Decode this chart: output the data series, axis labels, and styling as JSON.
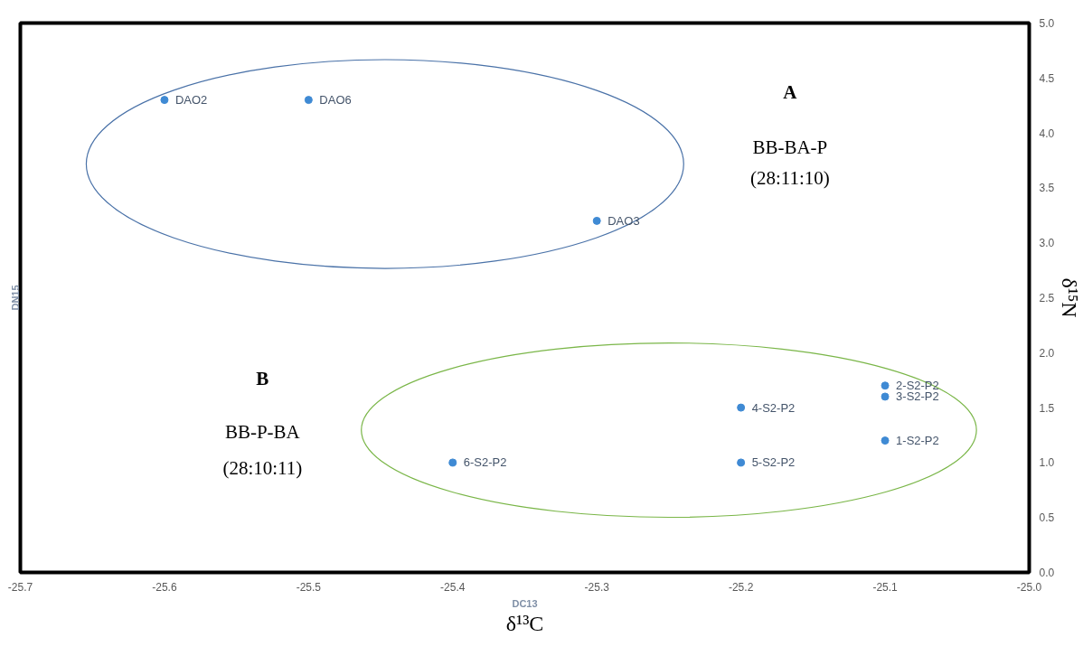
{
  "chart_data": {
    "type": "scatter",
    "xlabel": "DC13",
    "ylabel": "DN15",
    "x": [
      -25.6,
      -25.5,
      -25.3,
      -25.1,
      -25.1,
      -25.1,
      -25.2,
      -25.2,
      -25.4
    ],
    "values": [
      4.3,
      4.3,
      3.2,
      1.2,
      1.7,
      1.6,
      1.5,
      1.0,
      1.0
    ],
    "value_labels": [
      "DAO2",
      "DAO6",
      "DAO3",
      "1-S2-P2",
      "2-S2-P2",
      "3-S2-P2",
      "4-S2-P2",
      "5-S2-P2",
      "6-S2-P2"
    ],
    "color": "#3f8ad4",
    "marker": "circle",
    "grid": false,
    "xlim": [
      -25.7,
      -25.0
    ],
    "xticks": [
      -25.7,
      -25.6,
      -25.5,
      -25.4,
      -25.3,
      -25.2,
      -25.1,
      {
        "value": -25.0,
        "label": "-25.0"
      }
    ],
    "ylim": [
      0.0,
      5.0
    ],
    "yticks": [
      {
        "value": 0,
        "label": "0.0"
      },
      0.5,
      {
        "value": 1,
        "label": "1.0"
      },
      1.5,
      {
        "value": 2,
        "label": "2.0"
      },
      2.5,
      {
        "value": 3,
        "label": "3.0"
      },
      3.5,
      {
        "value": 4,
        "label": "4.0"
      },
      4.5,
      {
        "value": 5,
        "label": "5.0"
      }
    ],
    "annotations": [
      "A",
      "BB-BA-P",
      "(28:11:10)",
      "B",
      "BB-P-BA",
      "(28:10:11)",
      "δ¹³C",
      "δ¹⁵N"
    ]
  }
}
